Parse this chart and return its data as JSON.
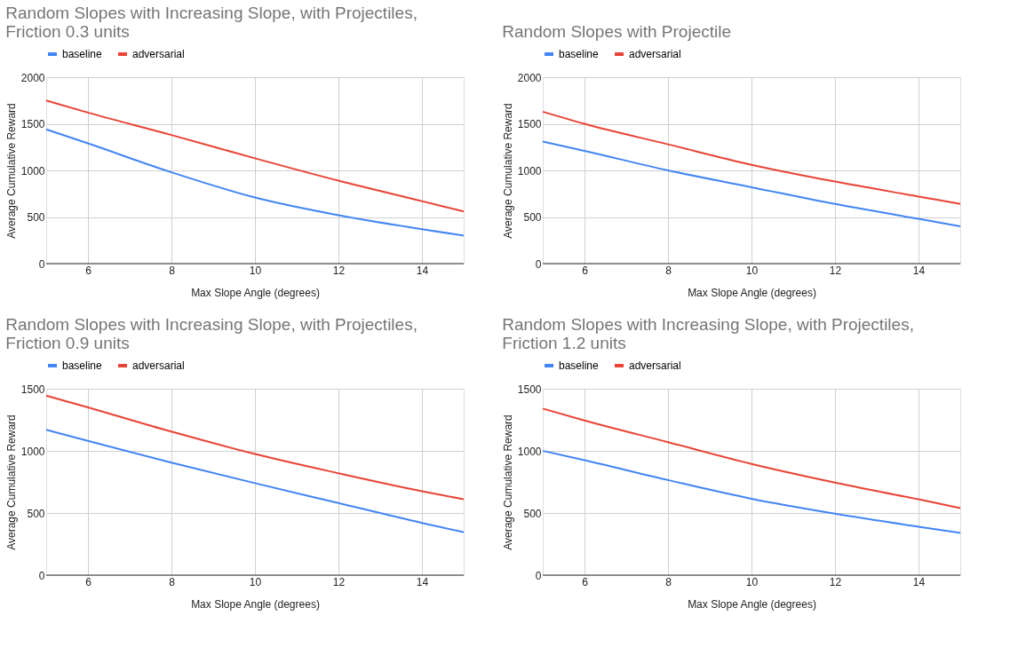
{
  "chart_data": [
    {
      "type": "line",
      "title": "Random Slopes with Increasing Slope, with Projectiles, Friction 0.3 units",
      "xlabel": "Max Slope Angle (degrees)",
      "ylabel": "Average Cumulative Reward",
      "x": [
        5,
        6,
        8,
        10,
        12,
        14,
        15
      ],
      "xlim": [
        5,
        15
      ],
      "xticks": [
        6,
        8,
        10,
        12,
        14
      ],
      "ylim": [
        0,
        2000
      ],
      "yticks": [
        0,
        500,
        1000,
        1500,
        2000
      ],
      "grid": true,
      "legend": "top",
      "series": [
        {
          "name": "baseline",
          "color": "#4285f4",
          "values": [
            1440,
            1290,
            980,
            710,
            520,
            370,
            300
          ]
        },
        {
          "name": "adversarial",
          "color": "#ea4335",
          "values": [
            1750,
            1620,
            1380,
            1130,
            890,
            670,
            560
          ]
        }
      ]
    },
    {
      "type": "line",
      "title": "Random Slopes with Projectile",
      "xlabel": "Max Slope Angle (degrees)",
      "ylabel": "Average Cumulative Reward",
      "x": [
        5,
        6,
        8,
        10,
        12,
        14,
        15
      ],
      "xlim": [
        5,
        15
      ],
      "xticks": [
        6,
        8,
        10,
        12,
        14
      ],
      "ylim": [
        0,
        2000
      ],
      "yticks": [
        0,
        500,
        1000,
        1500,
        2000
      ],
      "grid": true,
      "legend": "top",
      "series": [
        {
          "name": "baseline",
          "color": "#4285f4",
          "values": [
            1310,
            1210,
            1000,
            820,
            640,
            480,
            400
          ]
        },
        {
          "name": "adversarial",
          "color": "#ea4335",
          "values": [
            1630,
            1500,
            1280,
            1060,
            880,
            720,
            640
          ]
        }
      ]
    },
    {
      "type": "line",
      "title": "Random Slopes with Increasing Slope, with Projectiles, Friction 0.9 units",
      "xlabel": "Max Slope Angle (degrees)",
      "ylabel": "Average Cumulative Reward",
      "x": [
        5,
        6,
        8,
        10,
        12,
        14,
        15
      ],
      "xlim": [
        5,
        15
      ],
      "xticks": [
        6,
        8,
        10,
        12,
        14
      ],
      "ylim": [
        0,
        1500
      ],
      "yticks": [
        0,
        500,
        1000,
        1500
      ],
      "grid": true,
      "legend": "top",
      "series": [
        {
          "name": "baseline",
          "color": "#4285f4",
          "values": [
            1170,
            1080,
            905,
            740,
            580,
            420,
            345
          ]
        },
        {
          "name": "adversarial",
          "color": "#ea4335",
          "values": [
            1445,
            1350,
            1155,
            975,
            820,
            675,
            610
          ]
        }
      ]
    },
    {
      "type": "line",
      "title": "Random Slopes with Increasing Slope, with Projectiles, Friction 1.2 units",
      "xlabel": "Max Slope Angle (degrees)",
      "ylabel": "Average Cumulative Reward",
      "x": [
        5,
        6,
        8,
        10,
        12,
        14,
        15
      ],
      "xlim": [
        5,
        15
      ],
      "xticks": [
        6,
        8,
        10,
        12,
        14
      ],
      "ylim": [
        0,
        1500
      ],
      "yticks": [
        0,
        500,
        1000,
        1500
      ],
      "grid": true,
      "legend": "top",
      "series": [
        {
          "name": "baseline",
          "color": "#4285f4",
          "values": [
            1000,
            925,
            765,
            615,
            495,
            390,
            340
          ]
        },
        {
          "name": "adversarial",
          "color": "#ea4335",
          "values": [
            1340,
            1245,
            1070,
            895,
            745,
            610,
            540
          ]
        }
      ]
    }
  ]
}
